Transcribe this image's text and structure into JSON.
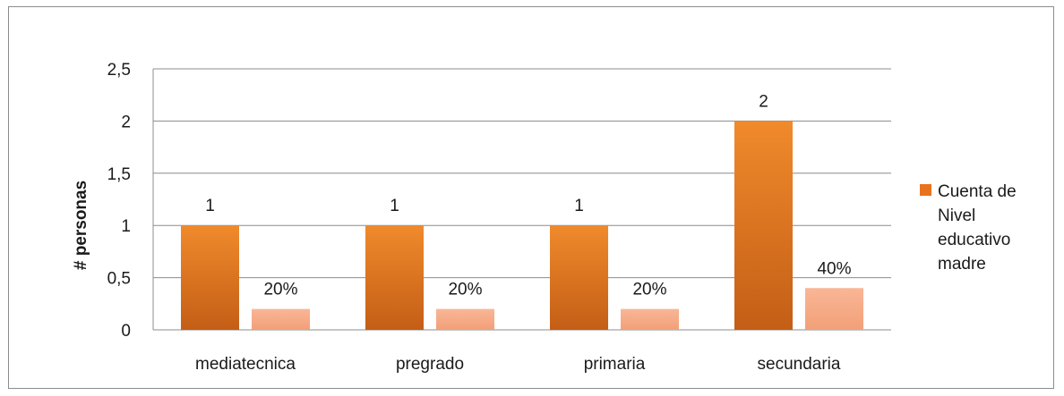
{
  "chart_data": {
    "type": "bar",
    "title": "",
    "xlabel": "",
    "ylabel": "# personas",
    "ylim": [
      0,
      2.5
    ],
    "yticks": [
      "0",
      "0,5",
      "1",
      "1,5",
      "2",
      "2,5"
    ],
    "categories": [
      "mediatecnica",
      "pregrado",
      "primaria",
      "secundaria"
    ],
    "series": [
      {
        "name": "Cuenta de Nivel educativo madre",
        "values": [
          1,
          1,
          1,
          2
        ],
        "labels": [
          "1",
          "1",
          "1",
          "2"
        ],
        "color": "#e8731e"
      },
      {
        "values": [
          0.2,
          0.2,
          0.2,
          0.4
        ],
        "labels": [
          "20%",
          "20%",
          "20%",
          "40%"
        ],
        "color": "#f7a882"
      }
    ],
    "grid": true,
    "legend": "right",
    "legend_lines": [
      "Cuenta de",
      "Nivel",
      "educativo",
      "madre"
    ]
  }
}
